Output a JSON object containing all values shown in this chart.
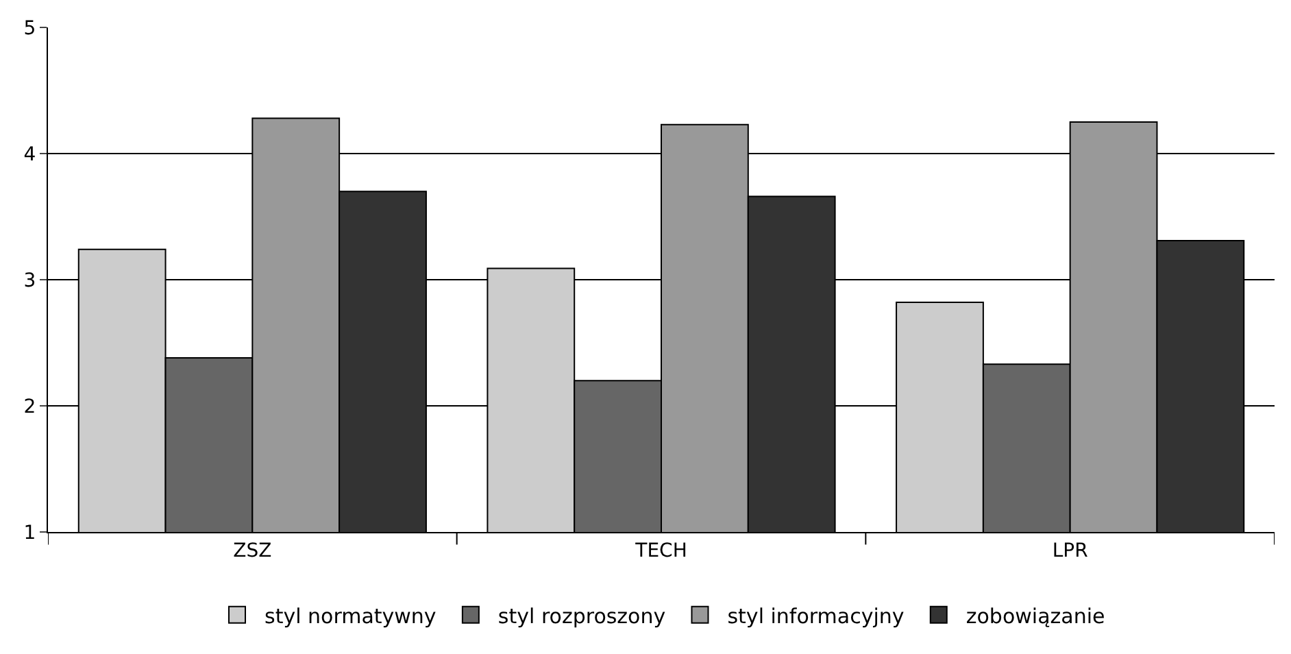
{
  "chart_data": {
    "type": "bar",
    "categories": [
      "ZSZ",
      "TECH",
      "LPR"
    ],
    "series": [
      {
        "name": "styl normatywny",
        "color": "#cccccc",
        "values": [
          3.24,
          3.09,
          2.82
        ]
      },
      {
        "name": "styl rozproszony",
        "color": "#666666",
        "values": [
          2.38,
          2.2,
          2.33
        ]
      },
      {
        "name": "styl informacyjny",
        "color": "#999999",
        "values": [
          4.28,
          4.23,
          4.25
        ]
      },
      {
        "name": "zobowiązanie",
        "color": "#333333",
        "values": [
          3.7,
          3.66,
          3.31
        ]
      }
    ],
    "ylim": [
      1,
      5
    ],
    "yticks": [
      1,
      2,
      3,
      4,
      5
    ],
    "grid": "y",
    "legend": "bottom"
  }
}
